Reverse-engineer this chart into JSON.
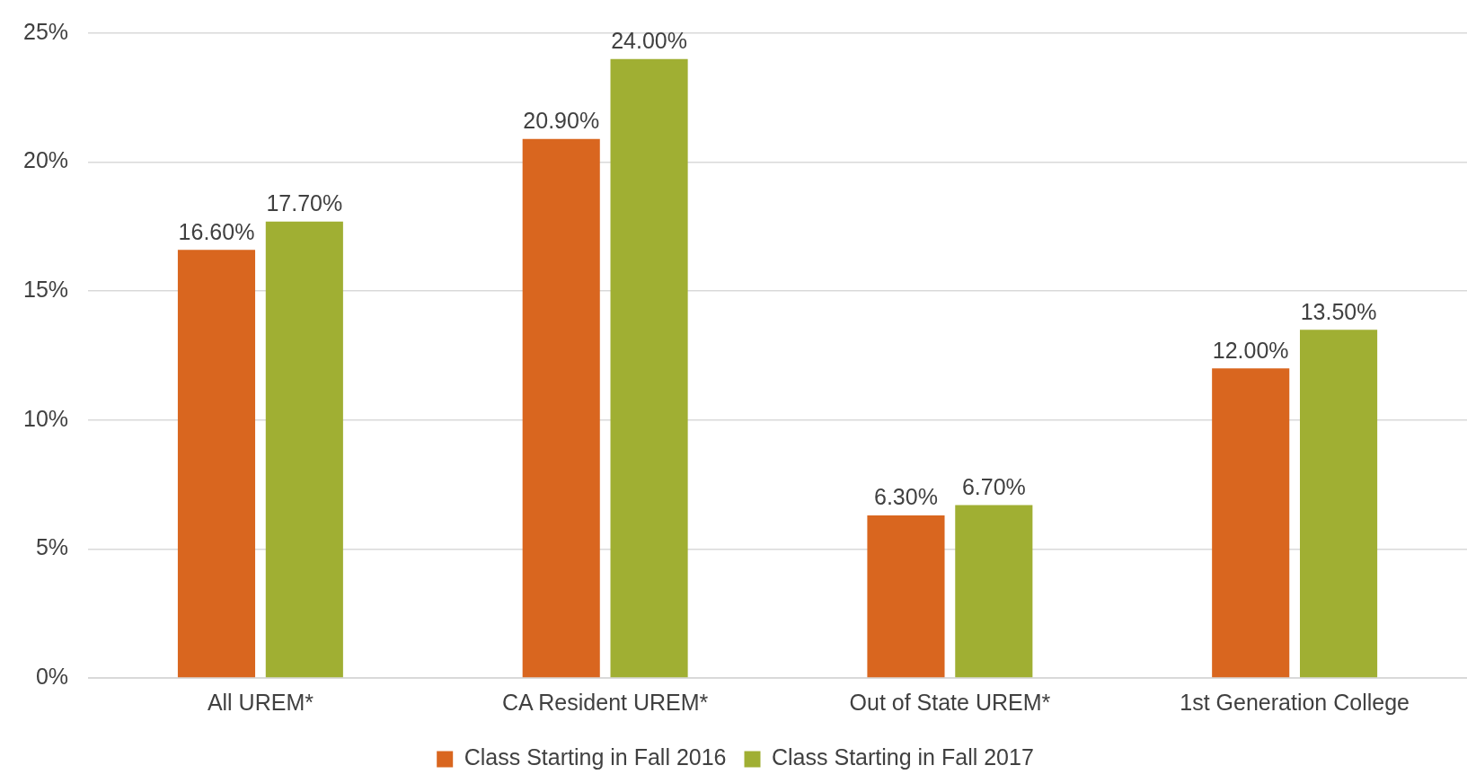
{
  "chart_data": {
    "type": "bar",
    "categories": [
      "All UREM*",
      "CA Resident UREM*",
      "Out of State UREM*",
      "1st Generation College"
    ],
    "series": [
      {
        "name": "Class Starting in Fall 2016",
        "color": "#d9661f",
        "values": [
          16.6,
          20.9,
          6.3,
          12.0
        ],
        "value_labels": [
          "16.60%",
          "20.90%",
          "6.30%",
          "12.00%"
        ]
      },
      {
        "name": "Class Starting in Fall 2017",
        "color": "#a0af33",
        "values": [
          17.7,
          24.0,
          6.7,
          13.5
        ],
        "value_labels": [
          "17.70%",
          "24.00%",
          "6.70%",
          "13.50%"
        ]
      }
    ],
    "ylim": [
      0,
      25
    ],
    "yticks": [
      {
        "value": 0,
        "label": "0%"
      },
      {
        "value": 5,
        "label": "5%"
      },
      {
        "value": 10,
        "label": "10%"
      },
      {
        "value": 15,
        "label": "15%"
      },
      {
        "value": 20,
        "label": "20%"
      },
      {
        "value": 25,
        "label": "25%"
      }
    ],
    "grid": "y",
    "legend": "bottom"
  }
}
